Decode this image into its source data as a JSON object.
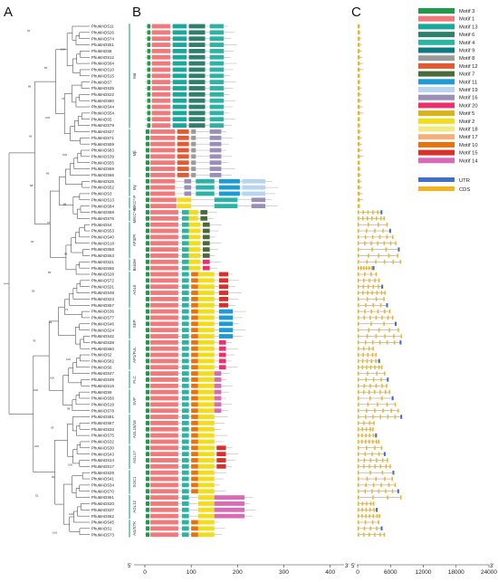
{
  "panels": {
    "a": "A",
    "b": "B",
    "c": "C"
  },
  "genes": [
    {
      "name": "PhuMADS11",
      "clade": 1
    },
    {
      "name": "PhuMADS26",
      "clade": 1
    },
    {
      "name": "PhuMADS74",
      "clade": 1
    },
    {
      "name": "PhuMADS51",
      "clade": 1
    },
    {
      "name": "PhuMADS8",
      "clade": 1
    },
    {
      "name": "PhuMADS12",
      "clade": 1
    },
    {
      "name": "PhuMADS64",
      "clade": 1
    },
    {
      "name": "PhuMADS10",
      "clade": 1
    },
    {
      "name": "PhuMADS15",
      "clade": 1
    },
    {
      "name": "PhuMADS7",
      "clade": 1
    },
    {
      "name": "PhuMADS35",
      "clade": 1
    },
    {
      "name": "PhuMADS22",
      "clade": 1
    },
    {
      "name": "PhuMADS80",
      "clade": 1
    },
    {
      "name": "PhuMADS44",
      "clade": 1
    },
    {
      "name": "PhuMADS54",
      "clade": 1
    },
    {
      "name": "PhuMADS5",
      "clade": 1
    },
    {
      "name": "PhuMADS79",
      "clade": 1
    },
    {
      "name": "PhuMADS27",
      "clade": 2
    },
    {
      "name": "PhuMADS71",
      "clade": 2
    },
    {
      "name": "PhuMADS59",
      "clade": 2
    },
    {
      "name": "PhuMADS83",
      "clade": 2
    },
    {
      "name": "PhuMADS39",
      "clade": 2
    },
    {
      "name": "PhuMADS55",
      "clade": 2
    },
    {
      "name": "PhuMADS69",
      "clade": 2
    },
    {
      "name": "PhuMADS66",
      "clade": 2
    },
    {
      "name": "PhuMADS25",
      "clade": 3
    },
    {
      "name": "PhuMADS52",
      "clade": 3
    },
    {
      "name": "PhuMADS3",
      "clade": 3
    },
    {
      "name": "PhuMADS13",
      "clade": 4
    },
    {
      "name": "PhuMADS84",
      "clade": 4
    },
    {
      "name": "PhuMADS68",
      "clade": 5
    },
    {
      "name": "PhuMADS76",
      "clade": 5
    },
    {
      "name": "PhuMADS4",
      "clade": 6
    },
    {
      "name": "PhuMADS53",
      "clade": 6
    },
    {
      "name": "PhuMADS40",
      "clade": 6
    },
    {
      "name": "PhuMADS18",
      "clade": 6
    },
    {
      "name": "PhuMADS58",
      "clade": 6
    },
    {
      "name": "PhuMADS63",
      "clade": 6
    },
    {
      "name": "PhuMADS21",
      "clade": 7
    },
    {
      "name": "PhuMADS65",
      "clade": 7
    },
    {
      "name": "PhuMADS28",
      "clade": 8
    },
    {
      "name": "PhuMADS72",
      "clade": 8
    },
    {
      "name": "PhuMADS31",
      "clade": 8
    },
    {
      "name": "PhuMADS48",
      "clade": 8
    },
    {
      "name": "PhuMADS23",
      "clade": 8
    },
    {
      "name": "PhuMADS57",
      "clade": 8
    },
    {
      "name": "PhuMADS36",
      "clade": 9
    },
    {
      "name": "PhuMADS77",
      "clade": 9
    },
    {
      "name": "PhuMADS46",
      "clade": 9
    },
    {
      "name": "PhuMADS24",
      "clade": 9
    },
    {
      "name": "PhuMADS42",
      "clade": 9
    },
    {
      "name": "PhuMADS38",
      "clade": 10
    },
    {
      "name": "PhuMADS60",
      "clade": 10
    },
    {
      "name": "PhuMADS2",
      "clade": 10
    },
    {
      "name": "PhuMADS82",
      "clade": 10
    },
    {
      "name": "PhuMADS6",
      "clade": 10
    },
    {
      "name": "PhuMADS47",
      "clade": 11
    },
    {
      "name": "PhuMADS49",
      "clade": 11
    },
    {
      "name": "PhuMADS16",
      "clade": 11
    },
    {
      "name": "PhuMADS9",
      "clade": 12
    },
    {
      "name": "PhuMADS56",
      "clade": 12
    },
    {
      "name": "PhuMADS19",
      "clade": 12
    },
    {
      "name": "PhuMADS78",
      "clade": 12
    },
    {
      "name": "PhuMADS81",
      "clade": 13
    },
    {
      "name": "PhuMADS67",
      "clade": 13
    },
    {
      "name": "PhuMADS33",
      "clade": 13
    },
    {
      "name": "PhuMADS75",
      "clade": 13
    },
    {
      "name": "PhuMADS32",
      "clade": 13
    },
    {
      "name": "PhuMADS30",
      "clade": 14
    },
    {
      "name": "PhuMADS43",
      "clade": 14
    },
    {
      "name": "PhuMADS14",
      "clade": 14
    },
    {
      "name": "PhuMADS17",
      "clade": 14
    },
    {
      "name": "PhuMADS29",
      "clade": 15
    },
    {
      "name": "PhuMADS41",
      "clade": 15
    },
    {
      "name": "PhuMADS34",
      "clade": 15
    },
    {
      "name": "PhuMADS70",
      "clade": 15
    },
    {
      "name": "PhuMADS61",
      "clade": 16
    },
    {
      "name": "PhuMADS20",
      "clade": 16
    },
    {
      "name": "PhuMADS37",
      "clade": 16
    },
    {
      "name": "PhuMADS62",
      "clade": 16
    },
    {
      "name": "PhuMADS45",
      "clade": 17
    },
    {
      "name": "PhuMADS1",
      "clade": 17
    },
    {
      "name": "PhuMADS73",
      "clade": 17
    }
  ],
  "clades": [
    {
      "label": "Mα",
      "from": 0,
      "to": 16,
      "color": "#1f9e6e"
    },
    {
      "label": "Mβ",
      "from": 17,
      "to": 24,
      "color": "#1f9e6e"
    },
    {
      "label": "Mγ",
      "from": 25,
      "to": 27,
      "color": "#1f9e6e"
    },
    {
      "label": "MIKC*-P",
      "from": 28,
      "to": 29,
      "color": "#1f9e6e"
    },
    {
      "label": "MIKC*-S",
      "from": 30,
      "to": 31,
      "color": "#1f9e6e"
    },
    {
      "label": "AP3/PI",
      "from": 32,
      "to": 37,
      "color": "#1f9e6e"
    },
    {
      "label": "Bsister",
      "from": 38,
      "to": 39,
      "color": "#1f9e6e"
    },
    {
      "label": "AGL6",
      "from": 40,
      "to": 45,
      "color": "#1f9e6e"
    },
    {
      "label": "SEP",
      "from": 46,
      "to": 50,
      "color": "#1f9e6e"
    },
    {
      "label": "AP1/FUL",
      "from": 51,
      "to": 55,
      "color": "#1f9e6e"
    },
    {
      "label": "FLC",
      "from": 56,
      "to": 58,
      "color": "#1f9e6e"
    },
    {
      "label": "SVP",
      "from": 59,
      "to": 62,
      "color": "#1f9e6e"
    },
    {
      "label": "AGL15/18",
      "from": 63,
      "to": 67,
      "color": "#1f9e6e"
    },
    {
      "label": "AGL17",
      "from": 68,
      "to": 71,
      "color": "#1f9e6e"
    },
    {
      "label": "SOC1",
      "from": 72,
      "to": 75,
      "color": "#1f9e6e"
    },
    {
      "label": "AGL12",
      "from": 76,
      "to": 79,
      "color": "#1f9e6e"
    },
    {
      "label": "AG/STK",
      "from": 80,
      "to": 82,
      "color": "#1f9e6e"
    }
  ],
  "bootstrap": [
    "91",
    "100",
    "55",
    "86",
    "74",
    "100",
    "69",
    "100",
    "96",
    "58",
    "86",
    "97",
    "64",
    "99",
    "86",
    "55",
    "71",
    "92",
    "78",
    "100",
    "100",
    "100",
    "98",
    "93",
    "100",
    "100",
    "90",
    "52",
    "100",
    "100"
  ],
  "motifs": [
    {
      "name": "Motif 3",
      "color": "#1e9a4b"
    },
    {
      "name": "Motif 1",
      "color": "#f0797b"
    },
    {
      "name": "Motif 13",
      "color": "#19a89c"
    },
    {
      "name": "Motif 6",
      "color": "#2f7f6f"
    },
    {
      "name": "Motif 4",
      "color": "#2bb3a6"
    },
    {
      "name": "Motif 9",
      "color": "#0f7a86"
    },
    {
      "name": "Motif 8",
      "color": "#9b9b9b"
    },
    {
      "name": "Motif 12",
      "color": "#e05a34"
    },
    {
      "name": "Motif 7",
      "color": "#4a6a38"
    },
    {
      "name": "Motif 11",
      "color": "#1e9ad4"
    },
    {
      "name": "Motif 19",
      "color": "#b8d4ef"
    },
    {
      "name": "Motif 16",
      "color": "#9a8fb8"
    },
    {
      "name": "Motif 20",
      "color": "#ec2f6e"
    },
    {
      "name": "Motif 5",
      "color": "#d9b21e"
    },
    {
      "name": "Motif 2",
      "color": "#f2dd1a"
    },
    {
      "name": "Motif 18",
      "color": "#f0ea86"
    },
    {
      "name": "Motif 17",
      "color": "#f2b07c"
    },
    {
      "name": "Motif 10",
      "color": "#e8730e"
    },
    {
      "name": "Motif 15",
      "color": "#d8302a"
    },
    {
      "name": "Motif 14",
      "color": "#d86ab8"
    }
  ],
  "gene_structure_legend": [
    {
      "name": "UTR",
      "color": "#3f6fc6"
    },
    {
      "name": "CDS",
      "color": "#f5b21d"
    }
  ],
  "axis_b": {
    "start_label": "5'",
    "end_label": "3'",
    "ticks": [
      "0",
      "100",
      "200",
      "300",
      "400"
    ],
    "max": 430
  },
  "axis_c": {
    "start_label": "5'",
    "end_label": "3'",
    "ticks": [
      "0",
      "6000",
      "12000",
      "18000",
      "24000"
    ],
    "max": 24000
  }
}
